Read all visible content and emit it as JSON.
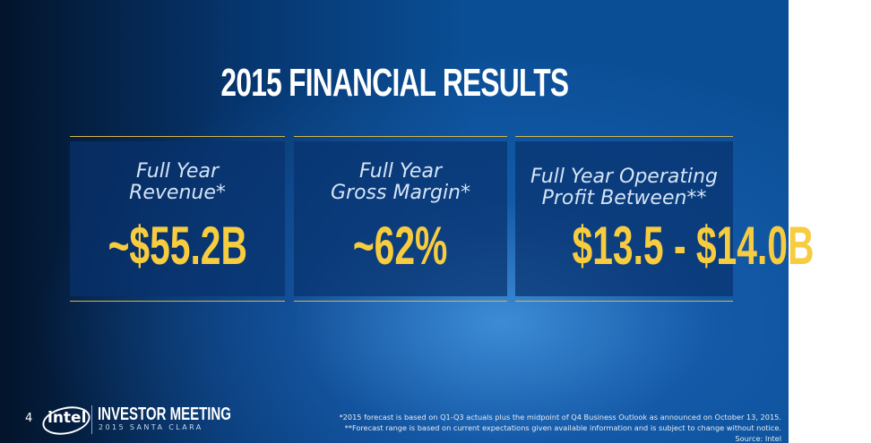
{
  "title": "2015 FINANCIAL RESULTS",
  "cards": [
    {
      "label": [
        "Full Year",
        "Revenue*"
      ],
      "value": "~$55.2B"
    },
    {
      "label": [
        "Full Year",
        "Gross Margin*"
      ],
      "value": "~62%"
    },
    {
      "label": [
        "Full Year Operating",
        "Profit Between**"
      ],
      "value": "$13.5 - $14.0B"
    }
  ],
  "footer": {
    "page": "4",
    "logo": "intel",
    "event": "INVESTOR MEETING",
    "event_sub": "2015 SANTA CLARA",
    "notes": [
      "*2015 forecast is based on Q1-Q3 actuals plus the midpoint of Q4 Business Outlook as announced on October 13, 2015.",
      "**Forecast range is based on current expectations given available information and is subject to change without notice.",
      "Source: Intel"
    ]
  }
}
